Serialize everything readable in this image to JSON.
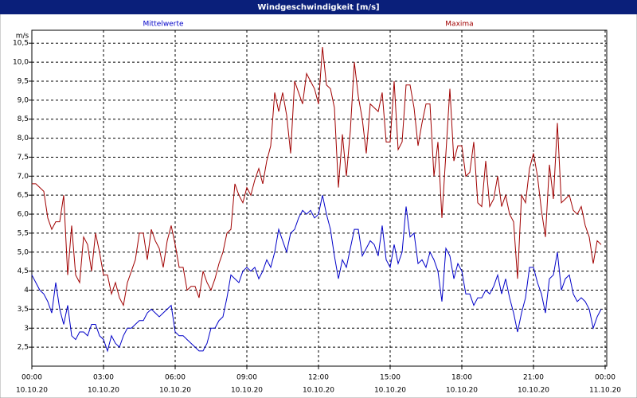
{
  "chart_data": {
    "type": "line",
    "title": "Windgeschwindigkeit [m/s]",
    "y_label": "m/s",
    "x": [
      0,
      10,
      20,
      30,
      40,
      50,
      60,
      70,
      80,
      90,
      100,
      110,
      120,
      130,
      140,
      150,
      160,
      170,
      180,
      190,
      200,
      210,
      220,
      230,
      240,
      250,
      260,
      270,
      280,
      290,
      300,
      310,
      320,
      330,
      340,
      350,
      360,
      370,
      380,
      390,
      400,
      410,
      420,
      430,
      440,
      450,
      460,
      470,
      480,
      490,
      500,
      510,
      520,
      530,
      540,
      550,
      560,
      570,
      580,
      590,
      600,
      610,
      620,
      630,
      640,
      650,
      660,
      670,
      680,
      690,
      700,
      710,
      720,
      730,
      740,
      750,
      760,
      770,
      780,
      790,
      800,
      810,
      820,
      830,
      840,
      850,
      860,
      870,
      880,
      890,
      900,
      910,
      920,
      930,
      940,
      950,
      960,
      970,
      980,
      990,
      1000,
      1010,
      1020,
      1030,
      1040,
      1050,
      1060,
      1070,
      1080,
      1090,
      1100,
      1110,
      1120,
      1130,
      1140,
      1150,
      1160,
      1170,
      1180,
      1190,
      1200,
      1210,
      1220,
      1230,
      1240,
      1250,
      1260,
      1270,
      1280,
      1290,
      1300,
      1310,
      1320,
      1330,
      1340,
      1350,
      1360,
      1370,
      1380,
      1390,
      1400,
      1410,
      1420,
      1430
    ],
    "series": [
      {
        "name": "Mittelwerte",
        "color": "#0000c8",
        "values": [
          4.4,
          4.2,
          4.0,
          3.9,
          3.7,
          3.4,
          4.2,
          3.5,
          3.1,
          3.6,
          2.8,
          2.7,
          2.9,
          2.9,
          2.8,
          3.1,
          3.1,
          2.8,
          2.7,
          2.4,
          2.8,
          2.6,
          2.5,
          2.8,
          3.0,
          3.0,
          3.1,
          3.2,
          3.2,
          3.4,
          3.5,
          3.4,
          3.3,
          3.4,
          3.5,
          3.6,
          2.9,
          2.8,
          2.8,
          2.7,
          2.6,
          2.5,
          2.4,
          2.4,
          2.6,
          3.0,
          3.0,
          3.2,
          3.3,
          3.8,
          4.4,
          4.3,
          4.2,
          4.5,
          4.6,
          4.5,
          4.6,
          4.3,
          4.5,
          4.8,
          4.6,
          5.0,
          5.6,
          5.3,
          5.0,
          5.5,
          5.6,
          5.9,
          6.1,
          6.0,
          6.1,
          5.9,
          6.0,
          6.5,
          6.0,
          5.6,
          4.9,
          4.3,
          4.8,
          4.6,
          5.1,
          5.6,
          5.6,
          4.9,
          5.1,
          5.3,
          5.2,
          4.9,
          5.7,
          4.8,
          4.6,
          5.2,
          4.7,
          5.0,
          6.2,
          5.4,
          5.5,
          4.7,
          4.8,
          4.6,
          5.0,
          4.8,
          4.5,
          3.7,
          5.1,
          4.9,
          4.3,
          4.7,
          4.5,
          3.9,
          3.9,
          3.6,
          3.8,
          3.8,
          4.0,
          3.9,
          4.1,
          4.4,
          3.9,
          4.3,
          3.8,
          3.4,
          2.9,
          3.4,
          3.8,
          4.6,
          4.6,
          4.2,
          3.9,
          3.4,
          4.3,
          4.4,
          5.0,
          4.0,
          4.3,
          4.4,
          3.9,
          3.7,
          3.8,
          3.7,
          3.5,
          3.0,
          3.3,
          3.5
        ]
      },
      {
        "name": "Maxima",
        "color": "#a00000",
        "values": [
          6.8,
          6.8,
          6.7,
          6.6,
          5.9,
          5.6,
          5.8,
          5.8,
          6.5,
          4.4,
          5.7,
          4.4,
          4.2,
          5.4,
          5.2,
          4.5,
          5.5,
          5.0,
          4.4,
          4.4,
          3.9,
          4.2,
          3.8,
          3.6,
          4.2,
          4.5,
          4.8,
          5.5,
          5.5,
          4.8,
          5.6,
          5.3,
          5.1,
          4.6,
          5.3,
          5.7,
          5.2,
          4.6,
          4.6,
          4.0,
          4.1,
          4.1,
          3.8,
          4.5,
          4.2,
          4.0,
          4.3,
          4.7,
          5.0,
          5.5,
          5.6,
          6.8,
          6.5,
          6.3,
          6.7,
          6.5,
          6.9,
          7.2,
          6.8,
          7.4,
          7.8,
          9.2,
          8.7,
          9.2,
          8.6,
          7.6,
          9.5,
          9.2,
          8.9,
          9.7,
          9.5,
          9.3,
          8.9,
          10.4,
          9.4,
          9.3,
          8.8,
          6.7,
          8.1,
          7.0,
          8.2,
          10.0,
          9.1,
          8.5,
          7.6,
          8.9,
          8.8,
          8.7,
          9.2,
          7.9,
          7.9,
          9.5,
          7.7,
          7.9,
          9.4,
          9.4,
          8.8,
          7.8,
          8.4,
          8.9,
          8.9,
          7.0,
          7.9,
          5.9,
          7.6,
          9.3,
          7.4,
          7.8,
          7.8,
          7.0,
          7.1,
          7.9,
          6.3,
          6.2,
          7.4,
          6.2,
          6.4,
          7.0,
          6.2,
          6.5,
          6.0,
          5.8,
          4.3,
          6.5,
          6.3,
          7.2,
          7.6,
          7.0,
          6.1,
          5.4,
          7.3,
          6.4,
          8.4,
          6.3,
          6.4,
          6.5,
          6.1,
          6.0,
          6.2,
          5.7,
          5.4,
          4.7,
          5.3,
          5.2
        ]
      }
    ],
    "xlim": [
      0,
      1440
    ],
    "xticks": [
      {
        "value": 0,
        "label": [
          "00:00",
          "10.10.20"
        ]
      },
      {
        "value": 180,
        "label": [
          "03:00",
          "10.10.20"
        ]
      },
      {
        "value": 360,
        "label": [
          "06:00",
          "10.10.20"
        ]
      },
      {
        "value": 540,
        "label": [
          "09:00",
          "10.10.20"
        ]
      },
      {
        "value": 720,
        "label": [
          "12:00",
          "10.10.20"
        ]
      },
      {
        "value": 900,
        "label": [
          "15:00",
          "10.10.20"
        ]
      },
      {
        "value": 1080,
        "label": [
          "18:00",
          "10.10.20"
        ]
      },
      {
        "value": 1260,
        "label": [
          "21:00",
          "10.10.20"
        ]
      },
      {
        "value": 1440,
        "label": [
          "00:00",
          "11.10.20"
        ]
      }
    ],
    "ylim": [
      2,
      10.84
    ],
    "yticks": [
      {
        "value": 2.5,
        "label": "2,5"
      },
      3,
      {
        "value": 3.5,
        "label": "3,5"
      },
      4,
      {
        "value": 4.5,
        "label": "4,5"
      },
      {
        "value": 5,
        "label": "5,0"
      },
      {
        "value": 5.5,
        "label": "5,5"
      },
      {
        "value": 6,
        "label": "6,0"
      },
      {
        "value": 6.5,
        "label": "6,5"
      },
      {
        "value": 7,
        "label": "7,0"
      },
      {
        "value": 7.5,
        "label": "7,5"
      },
      {
        "value": 8,
        "label": "8,0"
      },
      {
        "value": 8.5,
        "label": "8,5"
      },
      {
        "value": 9,
        "label": "9,0"
      },
      {
        "value": 9.5,
        "label": "9,5"
      },
      {
        "value": 10,
        "label": "10,0"
      },
      {
        "value": 10.5,
        "label": "10,5"
      }
    ],
    "grid": true,
    "legend": "top"
  }
}
